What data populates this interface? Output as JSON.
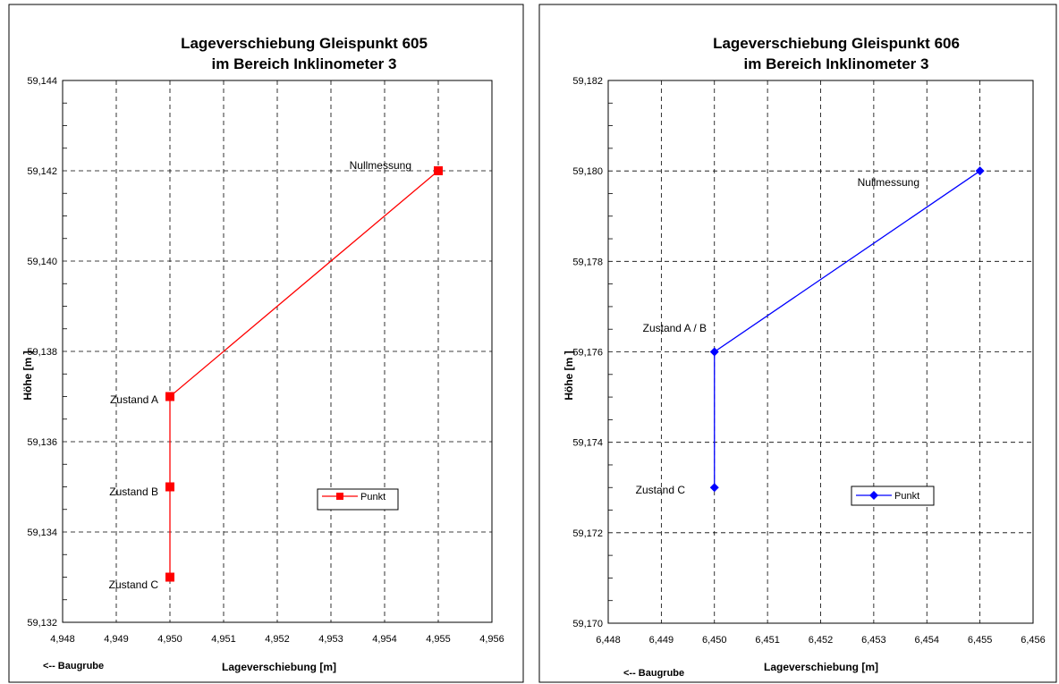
{
  "chart_data": [
    {
      "type": "line",
      "title_lines": [
        "Lageverschiebung Gleispunkt 605",
        "im Bereich Inklinometer 3"
      ],
      "xlabel": "Lageverschiebung [m]",
      "ylabel": "Höhe [m ]",
      "x_note": "<-- Baugrube",
      "xlim": [
        4.948,
        4.956
      ],
      "ylim": [
        59.132,
        59.144
      ],
      "x_ticks": [
        "4,948",
        "4,949",
        "4,950",
        "4,951",
        "4,952",
        "4,953",
        "4,954",
        "4,955",
        "4,956"
      ],
      "y_ticks": [
        "59,132",
        "59,134",
        "59,136",
        "59,138",
        "59,140",
        "59,142",
        "59,144"
      ],
      "grid": true,
      "legend_position": "center-right",
      "series": [
        {
          "name": "Punkt",
          "color": "#ff0000",
          "marker": "square",
          "x": [
            4.955,
            4.95,
            4.95,
            4.95
          ],
          "y": [
            59.142,
            59.137,
            59.135,
            59.133
          ]
        }
      ],
      "annotations": [
        "Nullmessung",
        "Zustand A",
        "Zustand B",
        "Zustand C"
      ]
    },
    {
      "type": "line",
      "title_lines": [
        "Lageverschiebung Gleispunkt 606",
        "im Bereich Inklinometer 3"
      ],
      "xlabel": "Lageverschiebung [m]",
      "ylabel": "Höhe [m ]",
      "x_note": "<-- Baugrube",
      "xlim": [
        6.448,
        6.456
      ],
      "ylim": [
        59.17,
        59.182
      ],
      "x_ticks": [
        "6,448",
        "6,449",
        "6,450",
        "6,451",
        "6,452",
        "6,453",
        "6,454",
        "6,455",
        "6,456"
      ],
      "y_ticks": [
        "59,170",
        "59,172",
        "59,174",
        "59,176",
        "59,178",
        "59,180",
        "59,182"
      ],
      "grid": true,
      "legend_position": "center-right",
      "series": [
        {
          "name": "Punkt",
          "color": "#0000ff",
          "marker": "diamond",
          "x": [
            6.455,
            6.45,
            6.45
          ],
          "y": [
            59.18,
            59.176,
            59.173
          ]
        }
      ],
      "annotations": [
        "Nullmessung",
        "Zustand A / B",
        "Zustand C"
      ]
    }
  ]
}
